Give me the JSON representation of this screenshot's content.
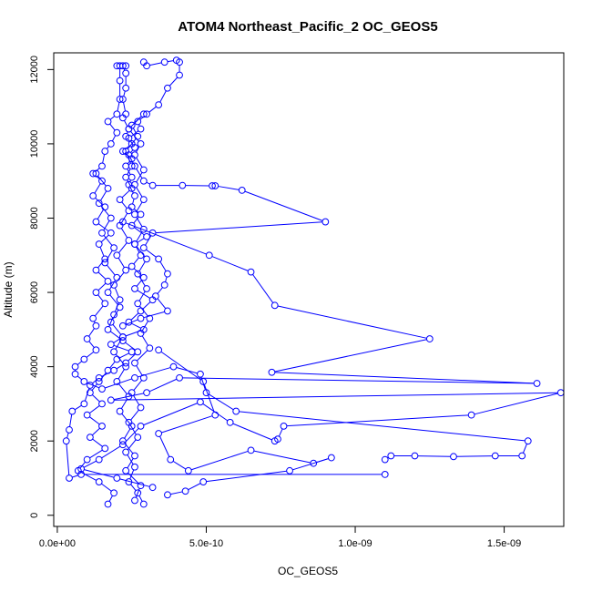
{
  "chart_data": {
    "type": "line",
    "title": "ATOM4 Northeast_Pacific_2 OC_GEOS5",
    "xlabel": "OC_GEOS5",
    "ylabel": "Altitude (m)",
    "xlim": [
      -1.2e-11,
      1.7e-09
    ],
    "ylim": [
      -300,
      12450
    ],
    "x_ticks": [
      0,
      5e-10,
      1e-09,
      1.5e-09
    ],
    "x_tick_labels": [
      "0.0e+00",
      "5.0e-10",
      "1.0e-09",
      "1.5e-09"
    ],
    "y_ticks": [
      0,
      2000,
      4000,
      6000,
      8000,
      10000,
      12000
    ],
    "y_tick_labels": [
      "0",
      "2000",
      "4000",
      "6000",
      "8000",
      "10000",
      "12000"
    ],
    "grid": false,
    "legend": "none",
    "colors": {
      "series": "#0000ff",
      "axis": "#000000"
    },
    "series": [
      {
        "points": [
          [
            2e-10,
            12100
          ],
          [
            2.2e-10,
            12100
          ],
          [
            2.3e-10,
            11900
          ],
          [
            2.3e-10,
            11500
          ],
          [
            2.2e-10,
            11200
          ],
          [
            2.3e-10,
            10800
          ],
          [
            2.2e-10,
            10700
          ],
          [
            2.4e-10,
            10400
          ],
          [
            2.3e-10,
            10200
          ],
          [
            2.5e-10,
            10000
          ],
          [
            2.2e-10,
            9800
          ],
          [
            2.5e-10,
            9600
          ],
          [
            2.3e-10,
            9400
          ],
          [
            2.5e-10,
            9100
          ],
          [
            2.4e-10,
            8900
          ],
          [
            2.6e-10,
            8600
          ],
          [
            2.5e-10,
            8300
          ],
          [
            2.8e-10,
            8100
          ],
          [
            2.5e-10,
            7800
          ],
          [
            3e-10,
            7500
          ],
          [
            2.6e-10,
            7300
          ],
          [
            2.8e-10,
            7000
          ],
          [
            2.5e-10,
            6700
          ],
          [
            2.9e-10,
            6400
          ],
          [
            2.6e-10,
            6100
          ],
          [
            3.2e-10,
            5800
          ],
          [
            2.8e-10,
            5500
          ],
          [
            2.4e-10,
            5200
          ],
          [
            2.9e-10,
            5000
          ],
          [
            2.2e-10,
            4800
          ],
          [
            1.8e-10,
            4600
          ],
          [
            2.5e-10,
            4400
          ],
          [
            2e-10,
            4200
          ],
          [
            1.7e-10,
            3900
          ],
          [
            1.4e-10,
            3600
          ],
          [
            1.1e-10,
            3300
          ],
          [
            1.5e-10,
            3000
          ],
          [
            1e-10,
            2700
          ],
          [
            1.5e-10,
            2400
          ],
          [
            1.1e-10,
            2100
          ],
          [
            1.6e-10,
            1800
          ],
          [
            1e-10,
            1500
          ],
          [
            7e-11,
            1200
          ],
          [
            1.4e-10,
            900
          ],
          [
            1.9e-10,
            600
          ],
          [
            1.7e-10,
            300
          ]
        ]
      },
      {
        "points": [
          [
            2.9e-10,
            12200
          ],
          [
            3e-10,
            12100
          ],
          [
            3.6e-10,
            12200
          ],
          [
            4e-10,
            12250
          ],
          [
            4.1e-10,
            12200
          ],
          [
            4.1e-10,
            11850
          ],
          [
            3.7e-10,
            11500
          ],
          [
            3.4e-10,
            11050
          ],
          [
            3e-10,
            10800
          ],
          [
            2.7e-10,
            10600
          ],
          [
            2.8e-10,
            10400
          ],
          [
            2.4e-10,
            10150
          ],
          [
            2.6e-10,
            9900
          ],
          [
            2.4e-10,
            9700
          ],
          [
            2.6e-10,
            9400
          ],
          [
            2.9e-10,
            9000
          ],
          [
            3.2e-10,
            8880
          ],
          [
            4.2e-10,
            8880
          ],
          [
            5.2e-10,
            8870
          ],
          [
            5.3e-10,
            8870
          ],
          [
            6.2e-10,
            8750
          ],
          [
            9e-10,
            7900
          ],
          [
            3.2e-10,
            7600
          ],
          [
            2.9e-10,
            7200
          ],
          [
            3.4e-10,
            6900
          ],
          [
            3.7e-10,
            6500
          ],
          [
            3.6e-10,
            6200
          ],
          [
            3.3e-10,
            5900
          ],
          [
            3.7e-10,
            5500
          ],
          [
            2.8e-10,
            5300
          ],
          [
            2.2e-10,
            5100
          ]
        ]
      },
      {
        "points": [
          [
            2.2e-10,
            7900
          ],
          [
            5.1e-10,
            7000
          ],
          [
            6.5e-10,
            6550
          ],
          [
            7.3e-10,
            5650
          ],
          [
            1.25e-09,
            4750
          ],
          [
            7.2e-10,
            3850
          ],
          [
            1.61e-09,
            3550
          ],
          [
            4.1e-10,
            3700
          ],
          [
            3e-10,
            3300
          ],
          [
            1.8e-10,
            3100
          ],
          [
            1.69e-09,
            3300
          ],
          [
            1.39e-09,
            2700
          ],
          [
            7.6e-10,
            2400
          ],
          [
            7.4e-10,
            2050
          ],
          [
            7.3e-10,
            2000
          ],
          [
            5.8e-10,
            2500
          ],
          [
            4.8e-10,
            3050
          ],
          [
            2.8e-10,
            2400
          ],
          [
            2.2e-10,
            1900
          ],
          [
            1.4e-10,
            1500
          ],
          [
            8e-11,
            1250
          ],
          [
            2e-10,
            1000
          ],
          [
            3.2e-10,
            750
          ]
        ]
      },
      {
        "points": [
          [
            3.4e-10,
            4450
          ],
          [
            4.9e-10,
            3600
          ],
          [
            5.3e-10,
            2700
          ],
          [
            3.4e-10,
            2200
          ],
          [
            3.8e-10,
            1500
          ],
          [
            4.4e-10,
            1200
          ],
          [
            6.5e-10,
            1750
          ],
          [
            8.6e-10,
            1400
          ],
          [
            9.2e-10,
            1550
          ],
          [
            7.8e-10,
            1200
          ],
          [
            4.9e-10,
            900
          ],
          [
            4.3e-10,
            650
          ],
          [
            3.7e-10,
            550
          ]
        ]
      },
      {
        "points": [
          [
            1.1e-09,
            1500
          ],
          [
            1.12e-09,
            1600
          ],
          [
            1.2e-09,
            1600
          ],
          [
            1.33e-09,
            1580
          ],
          [
            1.47e-09,
            1600
          ],
          [
            1.56e-09,
            1600
          ],
          [
            1.58e-09,
            2000
          ],
          [
            6e-10,
            2800
          ],
          [
            5e-10,
            3300
          ],
          [
            4.8e-10,
            3800
          ],
          [
            3.9e-10,
            4000
          ],
          [
            2.6e-10,
            3700
          ],
          [
            1.5e-10,
            3400
          ],
          [
            9e-11,
            3600
          ],
          [
            6e-11,
            3800
          ],
          [
            6e-11,
            4000
          ],
          [
            9e-11,
            4200
          ],
          [
            1.3e-10,
            4450
          ],
          [
            1e-10,
            4750
          ],
          [
            1.3e-10,
            5100
          ],
          [
            1.2e-10,
            5300
          ],
          [
            1.6e-10,
            5700
          ],
          [
            1.3e-10,
            6000
          ],
          [
            1.7e-10,
            6300
          ],
          [
            1.3e-10,
            6600
          ],
          [
            1.6e-10,
            6900
          ],
          [
            1.4e-10,
            7300
          ],
          [
            1.8e-10,
            7600
          ],
          [
            1.3e-10,
            7900
          ],
          [
            1.6e-10,
            8300
          ],
          [
            1.2e-10,
            8600
          ],
          [
            1.5e-10,
            9000
          ],
          [
            1.2e-10,
            9200
          ],
          [
            1.5e-10,
            9400
          ],
          [
            1.6e-10,
            9800
          ],
          [
            1.8e-10,
            10000
          ],
          [
            2e-10,
            10300
          ],
          [
            1.7e-10,
            10600
          ],
          [
            2e-10,
            10800
          ],
          [
            2.1e-10,
            11200
          ],
          [
            2.1e-10,
            11700
          ],
          [
            2.1e-10,
            12100
          ],
          [
            2.3e-10,
            12100
          ]
        ]
      },
      {
        "points": [
          [
            1.1e-09,
            1100
          ],
          [
            8e-11,
            1100
          ],
          [
            4e-11,
            1000
          ],
          [
            3e-11,
            2000
          ],
          [
            4e-11,
            2300
          ],
          [
            5e-11,
            2800
          ],
          [
            9e-11,
            3000
          ],
          [
            1.1e-10,
            3500
          ],
          [
            1.4e-10,
            3700
          ],
          [
            1.9e-10,
            3900
          ],
          [
            2.3e-10,
            4100
          ],
          [
            2.7e-10,
            4400
          ],
          [
            2.2e-10,
            4700
          ],
          [
            1.7e-10,
            5000
          ],
          [
            1.9e-10,
            5400
          ],
          [
            2.1e-10,
            5800
          ],
          [
            1.9e-10,
            6200
          ],
          [
            2.3e-10,
            6600
          ],
          [
            2e-10,
            7000
          ],
          [
            2.4e-10,
            7400
          ],
          [
            2.1e-10,
            7800
          ],
          [
            2.4e-10,
            8200
          ],
          [
            2.1e-10,
            8500
          ],
          [
            2.5e-10,
            8800
          ],
          [
            2.3e-10,
            9100
          ],
          [
            2.5e-10,
            9400
          ],
          [
            2.3e-10,
            9800
          ],
          [
            2.7e-10,
            10200
          ],
          [
            2.5e-10,
            10500
          ],
          [
            2.9e-10,
            10800
          ],
          [
            2.4e-10,
            10400
          ],
          [
            2.8e-10,
            10000
          ],
          [
            2.6e-10,
            9700
          ],
          [
            2.9e-10,
            9300
          ],
          [
            2.6e-10,
            8900
          ],
          [
            2.9e-10,
            8500
          ],
          [
            2.6e-10,
            8100
          ],
          [
            2.9e-10,
            7700
          ],
          [
            2.6e-10,
            7300
          ],
          [
            3e-10,
            6900
          ],
          [
            2.7e-10,
            6500
          ],
          [
            3e-10,
            6100
          ],
          [
            2.7e-10,
            5700
          ],
          [
            3.1e-10,
            5300
          ],
          [
            2.8e-10,
            4900
          ],
          [
            3.1e-10,
            4500
          ],
          [
            2.6e-10,
            4100
          ],
          [
            2.9e-10,
            3700
          ],
          [
            2.5e-10,
            3300
          ],
          [
            2.8e-10,
            2900
          ],
          [
            2.4e-10,
            2500
          ],
          [
            2.7e-10,
            2100
          ],
          [
            2.3e-10,
            1700
          ],
          [
            2.6e-10,
            1300
          ],
          [
            2.4e-10,
            900
          ],
          [
            2.7e-10,
            600
          ],
          [
            2.9e-10,
            300
          ]
        ]
      },
      {
        "points": [
          [
            1.3e-10,
            9200
          ],
          [
            1.7e-10,
            8800
          ],
          [
            1.4e-10,
            8400
          ],
          [
            1.8e-10,
            8000
          ],
          [
            1.5e-10,
            7600
          ],
          [
            1.9e-10,
            7200
          ],
          [
            1.6e-10,
            6800
          ],
          [
            2e-10,
            6400
          ],
          [
            1.7e-10,
            6000
          ],
          [
            2.1e-10,
            5600
          ],
          [
            1.8e-10,
            5200
          ],
          [
            2.2e-10,
            4800
          ],
          [
            1.9e-10,
            4400
          ],
          [
            2.3e-10,
            4000
          ],
          [
            2e-10,
            3600
          ],
          [
            2.4e-10,
            3200
          ],
          [
            2.1e-10,
            2800
          ],
          [
            2.5e-10,
            2400
          ],
          [
            2.2e-10,
            2000
          ],
          [
            2.6e-10,
            1600
          ],
          [
            2.3e-10,
            1200
          ],
          [
            2.8e-10,
            800
          ],
          [
            2.6e-10,
            400
          ]
        ]
      }
    ]
  }
}
